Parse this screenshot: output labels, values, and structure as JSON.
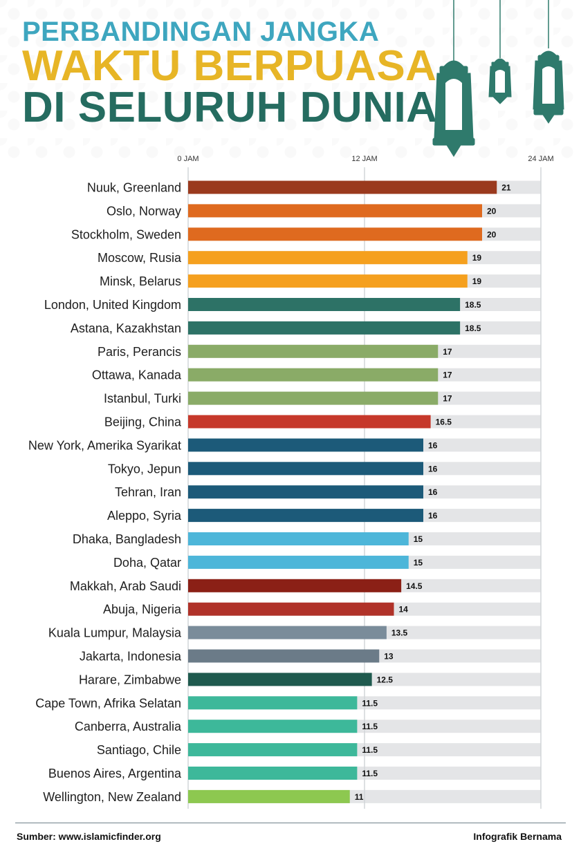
{
  "title": {
    "line1": "PERBANDINGAN JANGKA",
    "line2": "WAKTU BERPUASA",
    "line3": "DI SELURUH DUNIA"
  },
  "colors": {
    "title_line1": "#3ea6bf",
    "title_line2": "#e7b526",
    "title_line3": "#256c60",
    "track": "#e4e5e7",
    "lantern": "#2f7a6c"
  },
  "chart_data": {
    "type": "bar",
    "orientation": "horizontal",
    "x_ticks": [
      "0 JAM",
      "12 JAM",
      "24 JAM"
    ],
    "x_tick_values": [
      0,
      12,
      24
    ],
    "xlim": [
      0,
      24
    ],
    "grid": true,
    "legend": false,
    "categories": [
      "Nuuk, Greenland",
      "Oslo, Norway",
      "Stockholm, Sweden",
      "Moscow, Rusia",
      "Minsk, Belarus",
      "London, United Kingdom",
      "Astana, Kazakhstan",
      "Paris, Perancis",
      "Ottawa, Kanada",
      "Istanbul, Turki",
      "Beijing, China",
      "New York, Amerika Syarikat",
      "Tokyo, Jepun",
      "Tehran, Iran",
      "Aleppo, Syria",
      "Dhaka, Bangladesh",
      "Doha, Qatar",
      "Makkah, Arab Saudi",
      "Abuja, Nigeria",
      "Kuala Lumpur, Malaysia",
      "Jakarta, Indonesia",
      "Harare, Zimbabwe",
      "Cape Town, Afrika Selatan",
      "Canberra, Australia",
      "Santiago, Chile",
      "Buenos Aires, Argentina",
      "Wellington, New Zealand"
    ],
    "values": [
      21,
      20,
      20,
      19,
      19,
      18.5,
      18.5,
      17,
      17,
      17,
      16.5,
      16,
      16,
      16,
      16,
      15,
      15,
      14.5,
      14,
      13.5,
      13,
      12.5,
      11.5,
      11.5,
      11.5,
      11.5,
      11
    ],
    "value_labels": [
      "21",
      "20",
      "20",
      "19",
      "19",
      "18.5",
      "18.5",
      "17",
      "17",
      "17",
      "16.5",
      "16",
      "16",
      "16",
      "16",
      "15",
      "15",
      "14.5",
      "14",
      "13.5",
      "13",
      "12.5",
      "11.5",
      "11.5",
      "11.5",
      "11.5",
      "11"
    ],
    "bar_colors": [
      "#9a3a1e",
      "#df6a1f",
      "#df6a1f",
      "#f5a01e",
      "#f5a01e",
      "#2d7266",
      "#2d7266",
      "#8aab67",
      "#8aab67",
      "#8aab67",
      "#c6382a",
      "#1c5a79",
      "#1c5a79",
      "#1c5a79",
      "#1c5a79",
      "#4db6d9",
      "#4db6d9",
      "#8b2016",
      "#b03229",
      "#7a8c9a",
      "#6b7b88",
      "#1f5a4e",
      "#3db89a",
      "#3db89a",
      "#3db89a",
      "#3db89a",
      "#8dc850"
    ]
  },
  "footer": {
    "source": "Sumber: www.islamicfinder.org",
    "credit": "Infografik Bernama"
  }
}
